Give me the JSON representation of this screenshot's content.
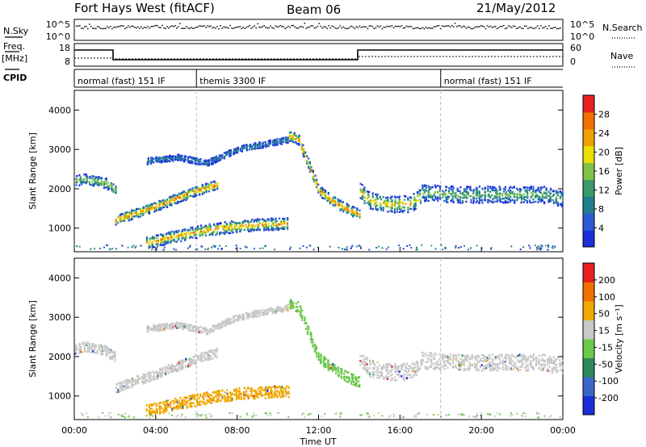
{
  "header": {
    "radar": "Fort Hays West (fitACF)",
    "beam": "Beam 06",
    "date": "21/May/2012"
  },
  "labels": {
    "n_sky": "N.Sky",
    "n_search": "N.Search",
    "freq": "Freq.",
    "freq_unit": "[MHz]",
    "nave": "Nave",
    "cpid": "CPID"
  },
  "noise_panel": {
    "left_ticks": [
      "10^5",
      "10^0"
    ],
    "right_ticks": [
      "10^5",
      "10^0"
    ]
  },
  "freq_panel": {
    "left_ticks": [
      "18",
      "8"
    ],
    "right_ticks": [
      "60",
      "0"
    ]
  },
  "cpid_modes": [
    {
      "label": "normal (fast) 151 IF",
      "start_h": 0,
      "end_h": 6
    },
    {
      "label": "themis 3300 IF",
      "start_h": 6,
      "end_h": 18
    },
    {
      "label": "normal (fast) 151 IF",
      "start_h": 18,
      "end_h": 24
    }
  ],
  "chart_data": [
    {
      "type": "heatmap",
      "name": "power",
      "ylabel": "Slant Range [km]",
      "xlim": [
        0,
        24
      ],
      "ylim": [
        400,
        4500
      ],
      "y_ticks": [
        "1000",
        "2000",
        "3000",
        "4000"
      ],
      "colorbar": {
        "label": "Power [dB]",
        "ticks": [
          "4",
          "8",
          "12",
          "16",
          "20",
          "24",
          "28"
        ],
        "colors": [
          "#1a2fd8",
          "#2b5ad4",
          "#1f7f8a",
          "#3a9a6a",
          "#7fc24a",
          "#e8e000",
          "#f0a000",
          "#f07000",
          "#e82020"
        ]
      },
      "bands": [
        {
          "t": [
            0.0,
            0.5,
            1.0,
            1.5,
            2.0
          ],
          "r": [
            2200,
            2250,
            2200,
            2150,
            1980
          ],
          "w": 260,
          "intensity": 0.55
        },
        {
          "t": [
            2.0,
            3.0,
            4.0,
            5.0,
            6.0,
            7.0
          ],
          "r": [
            1200,
            1380,
            1550,
            1750,
            1950,
            2100
          ],
          "w": 240,
          "intensity": 0.9
        },
        {
          "t": [
            3.5,
            5.0,
            6.5,
            8.0,
            9.5,
            10.5
          ],
          "r": [
            2700,
            2800,
            2650,
            3000,
            3150,
            3250
          ],
          "w": 160,
          "intensity": 0.25
        },
        {
          "t": [
            3.5,
            5.0,
            6.5,
            8.0,
            9.5,
            10.5
          ],
          "r": [
            620,
            800,
            950,
            1050,
            1100,
            1120
          ],
          "w": 300,
          "intensity": 0.8
        },
        {
          "t": [
            10.5,
            11.0,
            11.5,
            12.0,
            12.8,
            13.5,
            14.0
          ],
          "r": [
            3350,
            3250,
            2600,
            1950,
            1650,
            1450,
            1350
          ],
          "w": 260,
          "intensity": 0.85
        },
        {
          "t": [
            14.0,
            14.5,
            15.5,
            16.5,
            17.0
          ],
          "r": [
            1950,
            1700,
            1600,
            1620,
            1800
          ],
          "w": 420,
          "intensity": 0.7
        },
        {
          "t": [
            17.0,
            19.0,
            21.0,
            23.0,
            24.0
          ],
          "r": [
            1900,
            1850,
            1850,
            1850,
            1750
          ],
          "w": 420,
          "intensity": 0.45
        }
      ]
    },
    {
      "type": "heatmap",
      "name": "velocity",
      "xlabel": "Time UT",
      "ylabel": "Slant Range [km]",
      "xlim": [
        0,
        24
      ],
      "ylim": [
        400,
        4500
      ],
      "x_ticks": [
        "00:00",
        "04:00",
        "08:00",
        "12:00",
        "16:00",
        "20:00",
        "00:00"
      ],
      "y_ticks": [
        "1000",
        "2000",
        "3000",
        "4000"
      ],
      "colorbar": {
        "label": "Velocity [m s⁻¹]",
        "ticks": [
          "200",
          "100",
          "50",
          "15",
          "-15",
          "-50",
          "-100",
          "-200"
        ],
        "colors": [
          "#1a2fd8",
          "#3a66c8",
          "#2a8a5a",
          "#6cc84a",
          "#c8c8c8",
          "#f0a800",
          "#f07000",
          "#e82020"
        ]
      },
      "bands": [
        {
          "t": [
            0.0,
            0.5,
            1.0,
            1.5,
            2.0
          ],
          "r": [
            2200,
            2250,
            2200,
            2150,
            1980
          ],
          "w": 260,
          "color": "#c8c8c8"
        },
        {
          "t": [
            2.0,
            3.0,
            4.0,
            5.0,
            6.0,
            7.0
          ],
          "r": [
            1200,
            1380,
            1550,
            1750,
            1950,
            2100
          ],
          "w": 240,
          "color": "#c8c8c8"
        },
        {
          "t": [
            3.5,
            5.0,
            6.5,
            8.0,
            9.5,
            10.5
          ],
          "r": [
            2700,
            2800,
            2650,
            3000,
            3150,
            3250
          ],
          "w": 160,
          "color": "#c8c8c8"
        },
        {
          "t": [
            3.5,
            5.0,
            6.5,
            8.0,
            9.5,
            10.5
          ],
          "r": [
            620,
            800,
            950,
            1050,
            1100,
            1120
          ],
          "w": 300,
          "color": "#f0a800"
        },
        {
          "t": [
            10.5,
            11.0,
            11.5,
            12.0,
            12.8,
            13.5,
            14.0
          ],
          "r": [
            3350,
            3250,
            2600,
            1950,
            1650,
            1450,
            1350
          ],
          "w": 260,
          "color": "#6cc84a"
        },
        {
          "t": [
            14.0,
            14.5,
            15.5,
            16.5,
            17.0
          ],
          "r": [
            1950,
            1700,
            1600,
            1620,
            1800
          ],
          "w": 420,
          "color": "#c8c8c8"
        },
        {
          "t": [
            17.0,
            19.0,
            21.0,
            23.0,
            24.0
          ],
          "r": [
            1900,
            1850,
            1850,
            1850,
            1750
          ],
          "w": 420,
          "color": "#c8c8c8"
        }
      ]
    }
  ]
}
